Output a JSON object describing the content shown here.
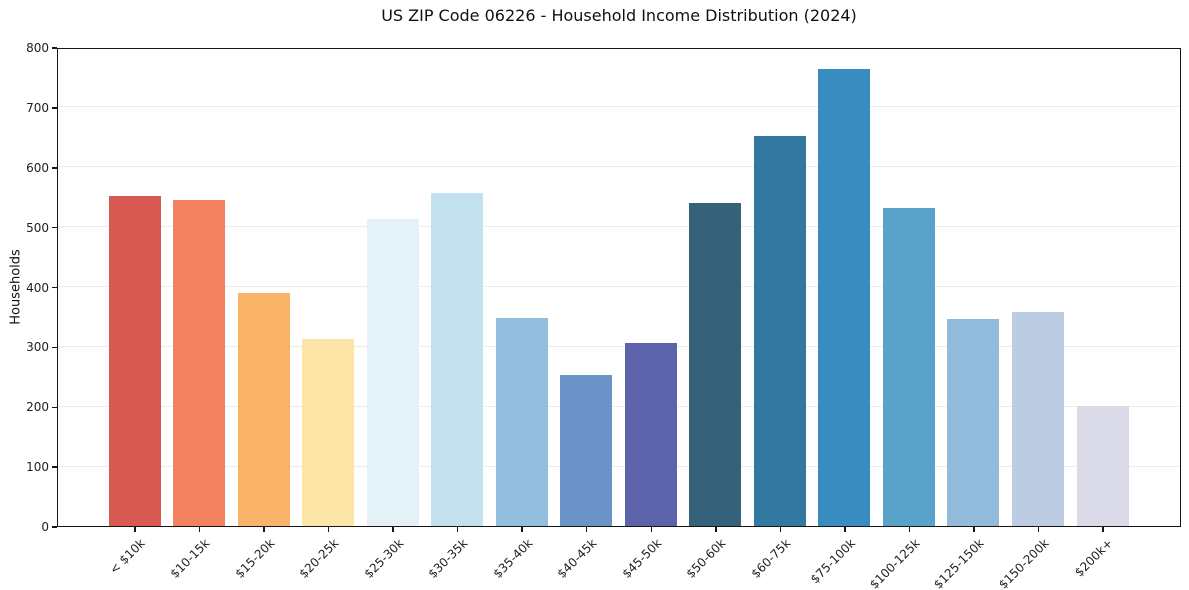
{
  "chart_data": {
    "type": "bar",
    "title": "US ZIP Code 06226 - Household Income Distribution (2024)",
    "xlabel": "",
    "ylabel": "Households",
    "ylim": [
      0,
      800
    ],
    "yticks": [
      0,
      100,
      200,
      300,
      400,
      500,
      600,
      700,
      800
    ],
    "grid": "horizontal",
    "legend": "none",
    "categories": [
      "< $10k",
      "$10-15k",
      "$15-20k",
      "$20-25k",
      "$25-30k",
      "$30-35k",
      "$35-40k",
      "$40-45k",
      "$45-50k",
      "$50-60k",
      "$60-75k",
      "$75-100k",
      "$100-125k",
      "$125-150k",
      "$150-200k",
      "$200k+"
    ],
    "values": [
      551,
      545,
      389,
      312,
      512,
      557,
      348,
      253,
      306,
      539,
      651,
      764,
      531,
      346,
      358,
      201
    ],
    "bar_colors": [
      "#d65a52",
      "#f2825f",
      "#f9b369",
      "#fce5a6",
      "#e4f1f7",
      "#c3e1ee",
      "#93bedd",
      "#6c93c7",
      "#5c63ab",
      "#35617a",
      "#33789f",
      "#388cbf",
      "#59a3cb",
      "#92badb",
      "#bccde3",
      "#dadae8"
    ],
    "grid_color": "#ececec",
    "axis_color": "#161616",
    "text_color": "#1f1f1f"
  }
}
